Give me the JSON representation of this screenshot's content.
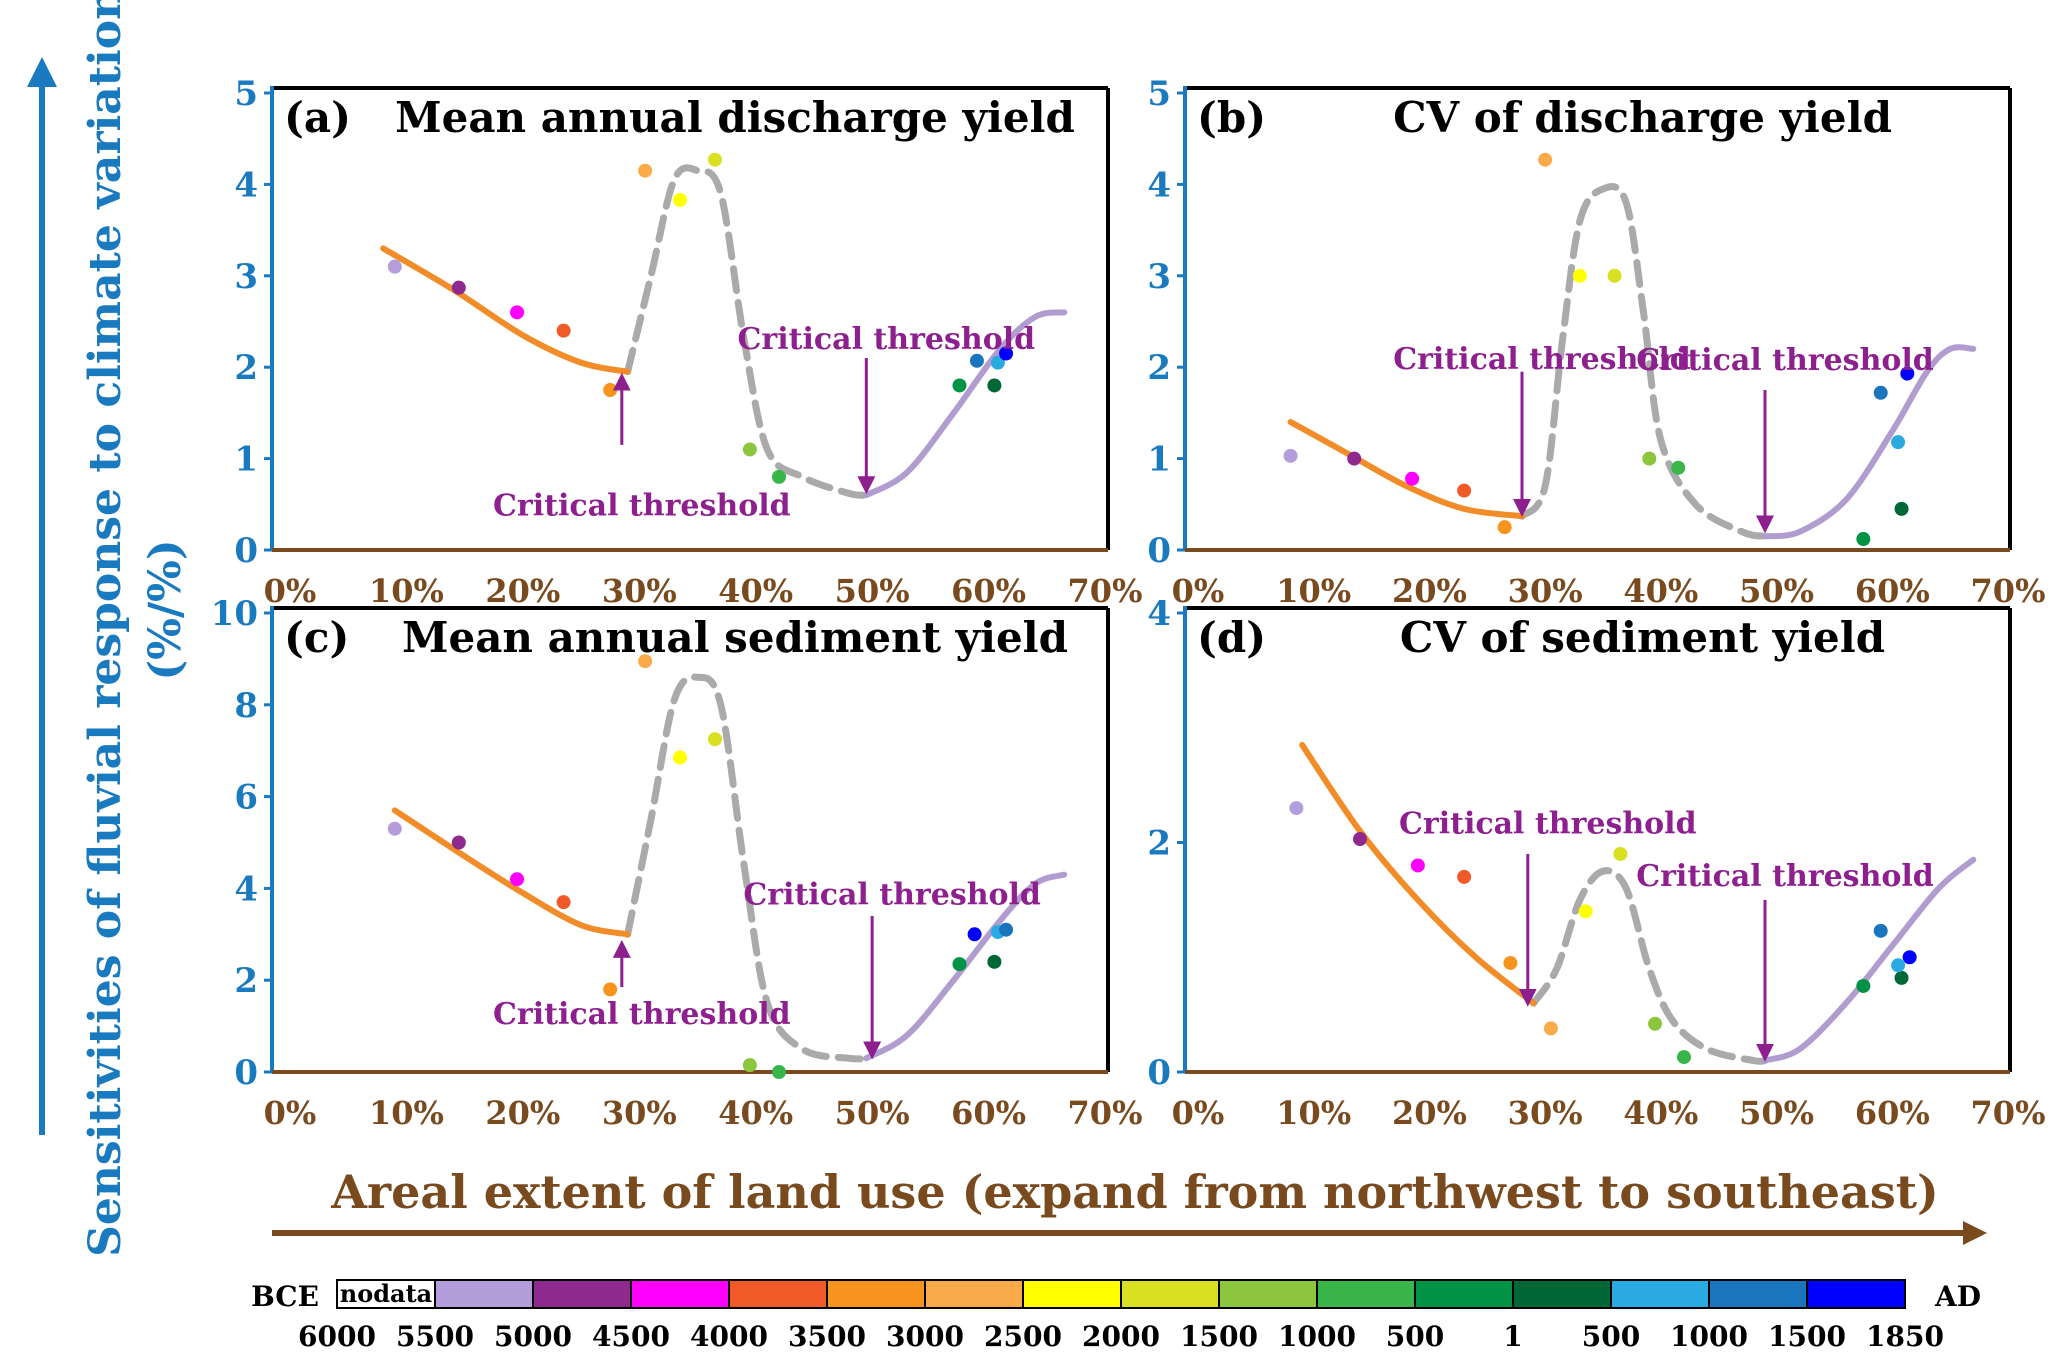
{
  "colors": {
    "y_axis": "#1a7abf",
    "x_axis": "#7a4a1f",
    "orange_curve": "#f28c28",
    "purple_curve": "#b19cd0",
    "gray_curve": "#aaaaaa",
    "annotation": "#8e1f8e"
  },
  "y_label_line1": "Sensitivities of fluvial response to climate variations",
  "y_label_line2": "(%/%)",
  "x_label": "Areal extent of land use (expand from northwest to southeast)",
  "timescale": {
    "left_label": "BCE",
    "right_label": "AD",
    "nodata_label": "nodata",
    "ticks": [
      "6000",
      "5500",
      "5000",
      "4500",
      "4000",
      "3500",
      "3000",
      "2500",
      "2000",
      "1500",
      "1000",
      "500",
      "1",
      "500",
      "1000",
      "1500",
      "1850"
    ],
    "colors": [
      "#ffffff",
      "#b39ddb",
      "#8e2a8e",
      "#ff00ff",
      "#f05a28",
      "#f7941d",
      "#fbaa4a",
      "#ffff00",
      "#d9e021",
      "#8cc63f",
      "#39b54a",
      "#009245",
      "#006837",
      "#29abe2",
      "#1b75bc",
      "#0000ff"
    ]
  },
  "chart_data": [
    {
      "type": "scatter",
      "label": "(a)",
      "title": "Mean annual discharge yield",
      "x_ticks": [
        "0%",
        "10%",
        "20%",
        "30%",
        "40%",
        "50%",
        "60%",
        "70%"
      ],
      "y_ticks": [
        "0",
        "1",
        "2",
        "3",
        "4",
        "5"
      ],
      "xlim": [
        0,
        70
      ],
      "ylim": [
        0,
        5
      ],
      "points": [
        {
          "x": 9,
          "y": 3.1,
          "color": "#b39ddb"
        },
        {
          "x": 14.5,
          "y": 2.87,
          "color": "#8e2a8e"
        },
        {
          "x": 19.5,
          "y": 2.6,
          "color": "#ff00ff"
        },
        {
          "x": 23.5,
          "y": 2.4,
          "color": "#f05a28"
        },
        {
          "x": 27.5,
          "y": 1.75,
          "color": "#f7941d"
        },
        {
          "x": 30.5,
          "y": 4.15,
          "color": "#fbaa4a"
        },
        {
          "x": 33.5,
          "y": 3.83,
          "color": "#ffff00"
        },
        {
          "x": 36.5,
          "y": 4.27,
          "color": "#d9e021"
        },
        {
          "x": 39.5,
          "y": 1.1,
          "color": "#8cc63f"
        },
        {
          "x": 42,
          "y": 0.8,
          "color": "#39b54a"
        },
        {
          "x": 57.5,
          "y": 1.8,
          "color": "#009245"
        },
        {
          "x": 59,
          "y": 2.07,
          "color": "#1b75bc"
        },
        {
          "x": 60.5,
          "y": 1.8,
          "color": "#006837"
        },
        {
          "x": 60.8,
          "y": 2.05,
          "color": "#29abe2"
        },
        {
          "x": 61.5,
          "y": 2.15,
          "color": "#0000ff"
        }
      ],
      "orange_curve": [
        [
          8,
          3.3
        ],
        [
          14,
          2.85
        ],
        [
          20,
          2.35
        ],
        [
          25,
          2.05
        ],
        [
          29,
          1.95
        ]
      ],
      "gray_curve": [
        [
          29,
          1.95
        ],
        [
          31,
          3
        ],
        [
          33,
          4.05
        ],
        [
          35,
          4.15
        ],
        [
          37,
          3.9
        ],
        [
          39,
          2.3
        ],
        [
          41,
          1.1
        ],
        [
          44,
          0.8
        ],
        [
          48,
          0.62
        ],
        [
          49.5,
          0.6
        ]
      ],
      "purple_curve": [
        [
          49.5,
          0.6
        ],
        [
          53,
          0.85
        ],
        [
          57,
          1.5
        ],
        [
          61,
          2.2
        ],
        [
          64,
          2.55
        ],
        [
          66.5,
          2.6
        ]
      ],
      "annotations": [
        {
          "text": "Critical threshold",
          "x": 28.5,
          "y": 0.38,
          "arrow_from_y": 1.15,
          "arrow_to_y": 1.9,
          "anchor": "middle"
        },
        {
          "text": "Critical threshold",
          "x": 49.5,
          "y": 2.2,
          "arrow_from_y": 2.1,
          "arrow_to_y": 0.65,
          "anchor": "middle"
        }
      ]
    },
    {
      "type": "scatter",
      "label": "(b)",
      "title": "CV of discharge yield",
      "x_ticks": [
        "0%",
        "10%",
        "20%",
        "30%",
        "40%",
        "50%",
        "60%",
        "70%"
      ],
      "y_ticks": [
        "0",
        "1",
        "2",
        "3",
        "4",
        "5"
      ],
      "xlim": [
        0,
        70
      ],
      "ylim": [
        0,
        5
      ],
      "points": [
        {
          "x": 8,
          "y": 1.03,
          "color": "#b39ddb"
        },
        {
          "x": 13.5,
          "y": 1.0,
          "color": "#8e2a8e"
        },
        {
          "x": 18.5,
          "y": 0.78,
          "color": "#ff00ff"
        },
        {
          "x": 23,
          "y": 0.65,
          "color": "#f05a28"
        },
        {
          "x": 26.5,
          "y": 0.25,
          "color": "#f7941d"
        },
        {
          "x": 30,
          "y": 4.27,
          "color": "#fbaa4a"
        },
        {
          "x": 33,
          "y": 3.0,
          "color": "#ffff00"
        },
        {
          "x": 36,
          "y": 3.0,
          "color": "#d9e021"
        },
        {
          "x": 39,
          "y": 1.0,
          "color": "#8cc63f"
        },
        {
          "x": 41.5,
          "y": 0.9,
          "color": "#39b54a"
        },
        {
          "x": 57.5,
          "y": 0.12,
          "color": "#009245"
        },
        {
          "x": 59,
          "y": 1.72,
          "color": "#1b75bc"
        },
        {
          "x": 60.8,
          "y": 0.45,
          "color": "#006837"
        },
        {
          "x": 60.5,
          "y": 1.18,
          "color": "#29abe2"
        },
        {
          "x": 61.3,
          "y": 1.93,
          "color": "#0000ff"
        }
      ],
      "orange_curve": [
        [
          8,
          1.4
        ],
        [
          13,
          1.05
        ],
        [
          18,
          0.7
        ],
        [
          23,
          0.45
        ],
        [
          28,
          0.37
        ]
      ],
      "gray_curve": [
        [
          28,
          0.37
        ],
        [
          30,
          0.7
        ],
        [
          31.5,
          2.3
        ],
        [
          33,
          3.6
        ],
        [
          35,
          3.95
        ],
        [
          37,
          3.8
        ],
        [
          38.5,
          2.6
        ],
        [
          40,
          1.2
        ],
        [
          43,
          0.5
        ],
        [
          47,
          0.2
        ],
        [
          49,
          0.15
        ]
      ],
      "purple_curve": [
        [
          49,
          0.15
        ],
        [
          52,
          0.2
        ],
        [
          56,
          0.55
        ],
        [
          60,
          1.3
        ],
        [
          63,
          1.95
        ],
        [
          65,
          2.2
        ],
        [
          67,
          2.2
        ]
      ],
      "annotations": [
        {
          "text": "Critical threshold",
          "x": 28,
          "y": 1.98,
          "arrow_from_y": 1.95,
          "arrow_to_y": 0.4,
          "anchor": "middle"
        },
        {
          "text": "Critical threshold",
          "x": 49,
          "y": 1.97,
          "arrow_from_y": 1.75,
          "arrow_to_y": 0.22,
          "anchor": "middle"
        }
      ]
    },
    {
      "type": "scatter",
      "label": "(c)",
      "title": "Mean annual sediment yield",
      "x_ticks": [
        "0%",
        "10%",
        "20%",
        "30%",
        "40%",
        "50%",
        "60%",
        "70%"
      ],
      "y_ticks": [
        "0",
        "2",
        "4",
        "6",
        "8",
        "10"
      ],
      "xlim": [
        0,
        70
      ],
      "ylim": [
        0,
        10
      ],
      "points": [
        {
          "x": 9,
          "y": 5.3,
          "color": "#b39ddb"
        },
        {
          "x": 14.5,
          "y": 5.0,
          "color": "#8e2a8e"
        },
        {
          "x": 19.5,
          "y": 4.2,
          "color": "#ff00ff"
        },
        {
          "x": 23.5,
          "y": 3.7,
          "color": "#f05a28"
        },
        {
          "x": 27.5,
          "y": 1.8,
          "color": "#f7941d"
        },
        {
          "x": 30.5,
          "y": 8.95,
          "color": "#fbaa4a"
        },
        {
          "x": 33.5,
          "y": 6.85,
          "color": "#ffff00"
        },
        {
          "x": 36.5,
          "y": 7.25,
          "color": "#d9e021"
        },
        {
          "x": 39.5,
          "y": 0.15,
          "color": "#8cc63f"
        },
        {
          "x": 42,
          "y": 0.0,
          "color": "#39b54a"
        },
        {
          "x": 57.5,
          "y": 2.35,
          "color": "#009245"
        },
        {
          "x": 58.8,
          "y": 3.0,
          "color": "#0000ff"
        },
        {
          "x": 60.5,
          "y": 2.4,
          "color": "#006837"
        },
        {
          "x": 60.8,
          "y": 3.05,
          "color": "#29abe2"
        },
        {
          "x": 61.5,
          "y": 3.1,
          "color": "#1b75bc"
        }
      ],
      "orange_curve": [
        [
          9,
          5.7
        ],
        [
          15,
          4.7
        ],
        [
          20,
          3.9
        ],
        [
          25,
          3.2
        ],
        [
          29,
          3.0
        ]
      ],
      "gray_curve": [
        [
          29,
          3.0
        ],
        [
          31,
          5.5
        ],
        [
          33,
          8.1
        ],
        [
          35,
          8.6
        ],
        [
          37,
          8.0
        ],
        [
          39,
          4.5
        ],
        [
          41,
          1.5
        ],
        [
          44,
          0.5
        ],
        [
          48,
          0.3
        ],
        [
          49.5,
          0.3
        ]
      ],
      "purple_curve": [
        [
          49.5,
          0.3
        ],
        [
          53,
          0.8
        ],
        [
          57,
          2.0
        ],
        [
          61,
          3.3
        ],
        [
          64,
          4.1
        ],
        [
          66.5,
          4.3
        ]
      ],
      "annotations": [
        {
          "text": "Critical threshold",
          "x": 28.5,
          "y": 1.05,
          "arrow_from_y": 1.85,
          "arrow_to_y": 2.8,
          "anchor": "middle"
        },
        {
          "text": "Critical threshold",
          "x": 50,
          "y": 3.65,
          "arrow_from_y": 3.4,
          "arrow_to_y": 0.35,
          "anchor": "middle"
        }
      ]
    },
    {
      "type": "scatter",
      "label": "(d)",
      "title": "CV of sediment yield",
      "x_ticks": [
        "0%",
        "10%",
        "20%",
        "30%",
        "40%",
        "50%",
        "60%",
        "70%"
      ],
      "y_ticks": [
        "0",
        "2",
        "4"
      ],
      "xlim": [
        0,
        70
      ],
      "ylim": [
        0,
        4
      ],
      "points": [
        {
          "x": 8.5,
          "y": 2.3,
          "color": "#b39ddb"
        },
        {
          "x": 14,
          "y": 2.03,
          "color": "#8e2a8e"
        },
        {
          "x": 19,
          "y": 1.8,
          "color": "#ff00ff"
        },
        {
          "x": 23,
          "y": 1.7,
          "color": "#f05a28"
        },
        {
          "x": 27,
          "y": 0.95,
          "color": "#f7941d"
        },
        {
          "x": 30.5,
          "y": 0.38,
          "color": "#fbaa4a"
        },
        {
          "x": 33.5,
          "y": 1.4,
          "color": "#ffff00"
        },
        {
          "x": 36.5,
          "y": 1.9,
          "color": "#d9e021"
        },
        {
          "x": 39.5,
          "y": 0.42,
          "color": "#8cc63f"
        },
        {
          "x": 42,
          "y": 0.13,
          "color": "#39b54a"
        },
        {
          "x": 57.5,
          "y": 0.75,
          "color": "#009245"
        },
        {
          "x": 59,
          "y": 1.23,
          "color": "#1b75bc"
        },
        {
          "x": 60.8,
          "y": 0.82,
          "color": "#006837"
        },
        {
          "x": 60.5,
          "y": 0.93,
          "color": "#29abe2"
        },
        {
          "x": 61.5,
          "y": 1.0,
          "color": "#0000ff"
        }
      ],
      "orange_curve": [
        [
          9,
          2.85
        ],
        [
          14,
          2.1
        ],
        [
          19,
          1.5
        ],
        [
          24,
          1.0
        ],
        [
          29,
          0.6
        ]
      ],
      "gray_curve": [
        [
          29,
          0.6
        ],
        [
          31,
          0.9
        ],
        [
          33,
          1.5
        ],
        [
          35,
          1.75
        ],
        [
          37,
          1.6
        ],
        [
          39,
          0.9
        ],
        [
          41,
          0.45
        ],
        [
          44,
          0.2
        ],
        [
          48,
          0.1
        ],
        [
          49,
          0.1
        ]
      ],
      "purple_curve": [
        [
          49,
          0.1
        ],
        [
          52,
          0.2
        ],
        [
          56,
          0.6
        ],
        [
          60,
          1.1
        ],
        [
          64,
          1.6
        ],
        [
          67,
          1.85
        ]
      ],
      "annotations": [
        {
          "text": "Critical threshold",
          "x": 28.5,
          "y": 2.08,
          "arrow_from_y": 1.9,
          "arrow_to_y": 0.6,
          "anchor": "middle"
        },
        {
          "text": "Critical threshold",
          "x": 49,
          "y": 1.62,
          "arrow_from_y": 1.5,
          "arrow_to_y": 0.12,
          "anchor": "middle"
        }
      ]
    }
  ]
}
